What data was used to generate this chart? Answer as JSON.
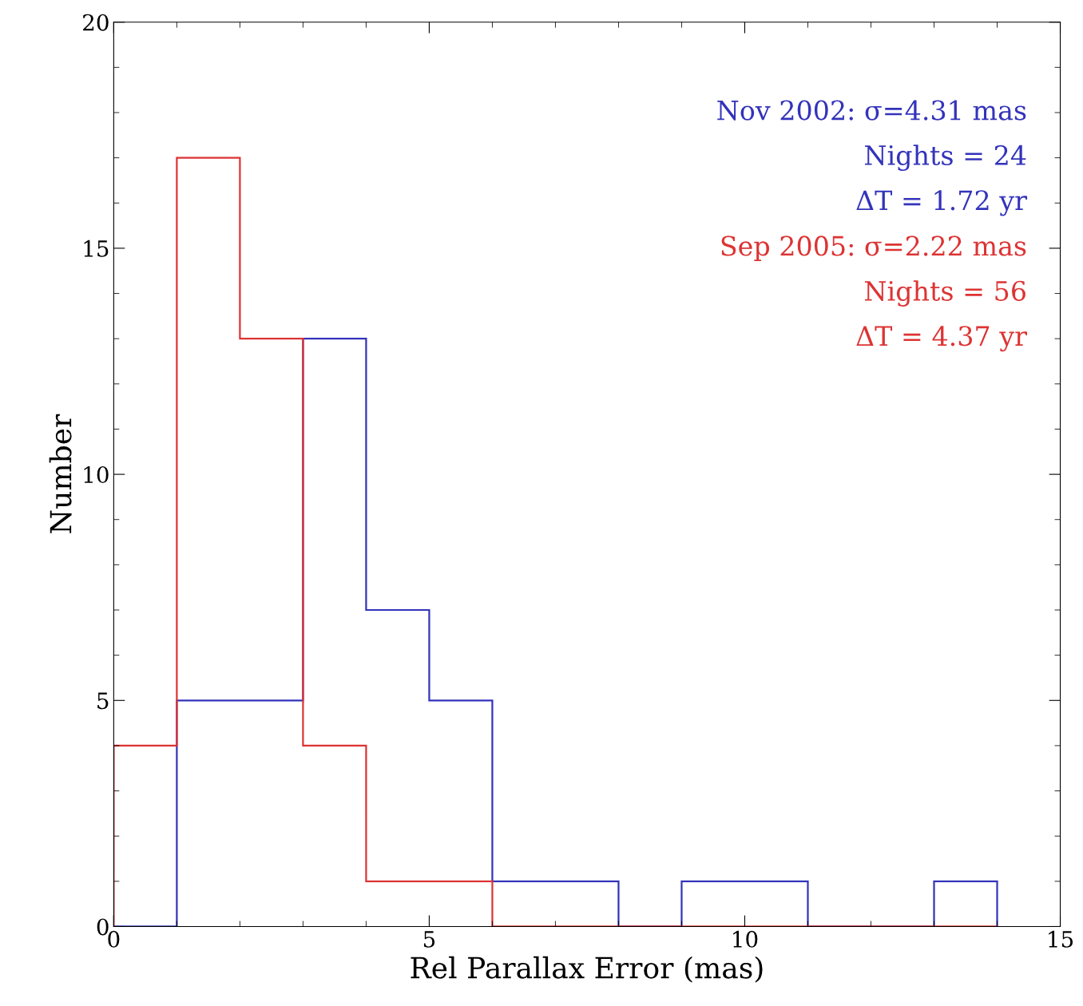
{
  "chart_data": {
    "type": "histogram",
    "xlabel": "Rel Parallax Error (mas)",
    "ylabel": "Number",
    "bins": [
      0,
      1,
      2,
      3,
      4,
      5,
      6,
      7,
      8,
      9,
      10,
      11,
      12,
      13,
      14
    ],
    "series": [
      {
        "name": "Nov 2002: σ=4.31 mas",
        "color": "#3333bb",
        "values": [
          0,
          5,
          5,
          13,
          7,
          5,
          1,
          1,
          0,
          1,
          1,
          0,
          0,
          1
        ]
      },
      {
        "name": "Sep 2005: σ=2.22 mas",
        "color": "#dd3333",
        "values": [
          4,
          17,
          13,
          4,
          1,
          1,
          0,
          0,
          0,
          0,
          0,
          0,
          0,
          0
        ]
      }
    ],
    "annotations": [
      "Nights = 24",
      "ΔT = 1.72 yr",
      "Nights = 56",
      "ΔT = 4.37 yr"
    ],
    "xlim": [
      0,
      15
    ],
    "xticks": [
      0,
      5,
      10,
      15
    ],
    "ylim": [
      0,
      20
    ],
    "yticks": [
      0,
      5,
      10,
      15,
      20
    ],
    "grid": false,
    "legend": "top right"
  }
}
